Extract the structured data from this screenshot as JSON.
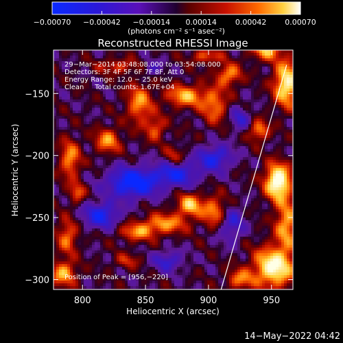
{
  "chart_data": {
    "type": "heatmap",
    "title": "Reconstructed RHESSI Image",
    "xlabel": "Heliocentric X (arcsec)",
    "ylabel": "Heliocentric Y (arcsec)",
    "xlim": [
      777,
      967
    ],
    "ylim": [
      -308,
      -115
    ],
    "xticks": [
      800,
      850,
      900,
      950
    ],
    "xtick_labels": [
      "800",
      "850",
      "900",
      "950"
    ],
    "yticks": [
      -150,
      -200,
      -250,
      -300
    ],
    "ytick_labels": [
      "−150",
      "−200",
      "−250",
      "−300"
    ],
    "colorbar": {
      "range": [
        -0.0007,
        0.0007
      ],
      "ticks": [
        -0.0007,
        -0.00042,
        -0.00014,
        0.00014,
        0.00042,
        0.0007
      ],
      "tick_labels": [
        "−0.00070",
        "−0.00042",
        "−0.00014",
        "0.00014",
        "0.00042",
        "0.00070"
      ],
      "unit_label": "(photons cm⁻² s⁻¹ asec⁻²)"
    },
    "annotations": [
      "29−Mar−2014 03:48:08.000 to 03:54:08.000",
      "Detectors: 3F 4F 5F 6F 7F 8F, Att 0",
      "Energy Range: 12.0 − 25.0 keV",
      "Clean     Total counts: 1.67E+04"
    ],
    "peak_label": "Position of Peak = [956,−220]",
    "peak": [
      956,
      -220
    ],
    "limb_line": [
      [
        910,
        -308
      ],
      [
        962,
        -127
      ]
    ]
  },
  "footer_date": "14−May−2022 04:42"
}
